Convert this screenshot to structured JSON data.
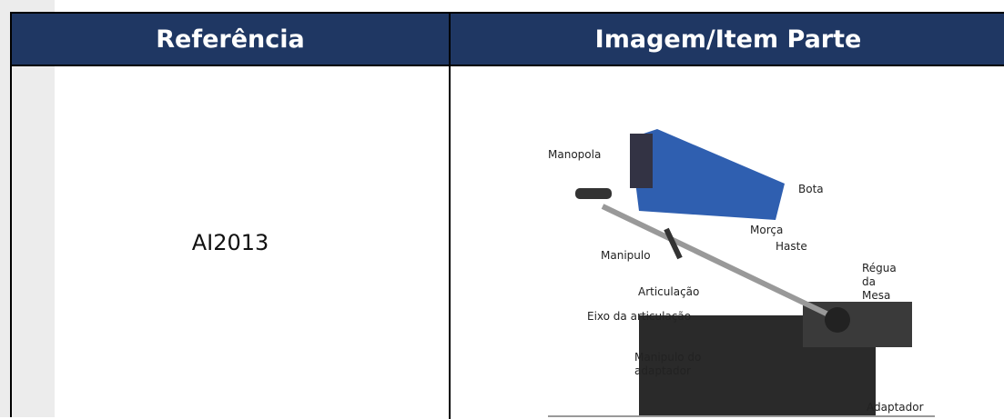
{
  "table": {
    "header": [
      "Referência",
      "Imagem/Item Parte"
    ],
    "rows": [
      [
        "AI2013"
      ]
    ]
  },
  "figure": {
    "labels": [
      {
        "lines": [
          "Manopola"
        ]
      },
      {
        "lines": [
          "Bota"
        ]
      },
      {
        "lines": [
          "Morça"
        ]
      },
      {
        "lines": [
          "Haste"
        ]
      },
      {
        "lines": [
          "Manipulo"
        ]
      },
      {
        "lines": [
          "Régua",
          "da",
          "Mesa"
        ]
      },
      {
        "lines": [
          "Articulação"
        ]
      },
      {
        "lines": [
          "Eixo da articulação"
        ]
      },
      {
        "lines": [
          "Manipulo do",
          "adaptador"
        ]
      },
      {
        "lines": [
          "Adaptador"
        ]
      }
    ]
  }
}
